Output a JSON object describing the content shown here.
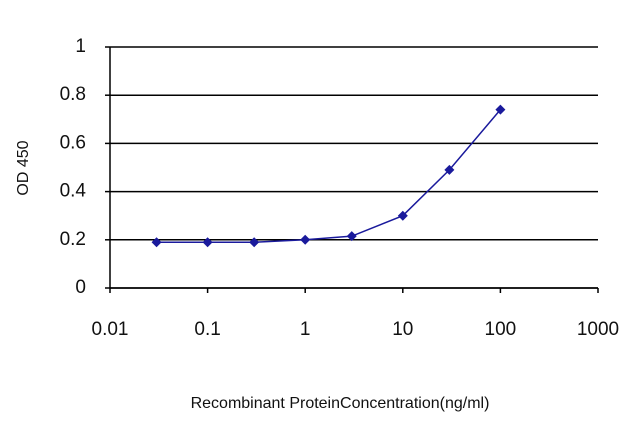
{
  "chart_data": {
    "type": "line",
    "x_label": "Recombinant ProteinConcentration(ng/ml)",
    "y_label": "OD 450",
    "x": [
      0.03,
      0.1,
      0.3,
      1,
      3,
      10,
      30,
      100
    ],
    "values": [
      0.19,
      0.19,
      0.19,
      0.2,
      0.215,
      0.3,
      0.49,
      0.74
    ],
    "color": "#1a1a9c",
    "x_log": true,
    "xlim": [
      0.01,
      1000
    ],
    "xticks": [
      0.01,
      0.1,
      1,
      10,
      100,
      1000
    ],
    "ylim": [
      0,
      1
    ],
    "yticks": [
      0,
      0.2,
      0.4,
      0.6,
      0.8,
      1
    ],
    "grid": true
  }
}
